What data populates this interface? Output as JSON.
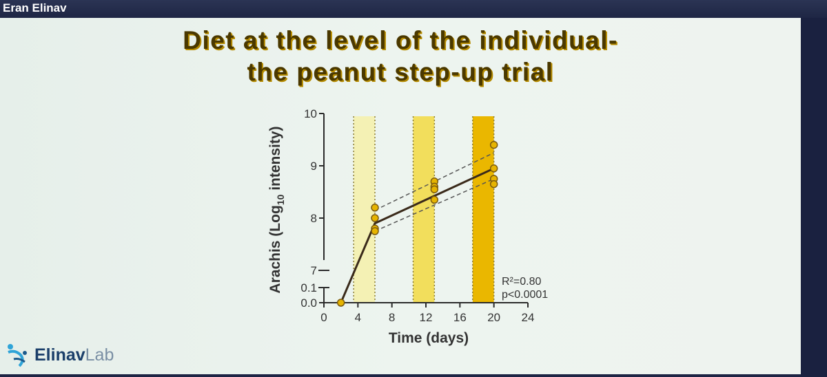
{
  "header": {
    "speaker": "Eran Elinav"
  },
  "slide": {
    "title_line1": "Diet at the level of the individual-",
    "title_line2": "the peanut step-up trial"
  },
  "logo": {
    "bold": "Elinav",
    "light": "Lab"
  },
  "colors": {
    "line": "#3a2a1a",
    "point_fill": "#e6b400",
    "point_stroke": "#7a5a10",
    "band1": "#f4f1b4",
    "band2": "#f2de5c",
    "band3": "#eab700"
  },
  "chart_data": {
    "type": "line",
    "xlabel": "Time (days)",
    "ylabel_main": "Arachis (Log",
    "ylabel_sub": "10",
    "ylabel_end": " intensity)",
    "x_ticks": [
      0,
      4,
      8,
      12,
      16,
      20,
      24
    ],
    "y_ticks": [
      {
        "value": 0.0,
        "label": "0.0"
      },
      {
        "value": 0.1,
        "label": "0.1"
      },
      {
        "value": 7,
        "label": "7"
      },
      {
        "value": 8,
        "label": "8"
      },
      {
        "value": 9,
        "label": "9"
      },
      {
        "value": 10,
        "label": "10"
      }
    ],
    "xlim": [
      0,
      24
    ],
    "axis_break": "between 0.1 and 7",
    "bands": [
      {
        "x0": 3.5,
        "x1": 6,
        "shade": "band1"
      },
      {
        "x0": 10.5,
        "x1": 13,
        "shade": "band2"
      },
      {
        "x0": 17.5,
        "x1": 20,
        "shade": "band3"
      }
    ],
    "mean_line": [
      {
        "x": 2,
        "y": 0.0
      },
      {
        "x": 6,
        "y": 7.9
      },
      {
        "x": 20,
        "y": 8.95
      }
    ],
    "ci_upper": [
      {
        "x": 6,
        "y": 8.15
      },
      {
        "x": 20,
        "y": 9.25
      }
    ],
    "ci_lower": [
      {
        "x": 6,
        "y": 7.75
      },
      {
        "x": 20,
        "y": 8.75
      }
    ],
    "points": [
      {
        "x": 2,
        "y": 0.0
      },
      {
        "x": 6,
        "y": 8.2
      },
      {
        "x": 6,
        "y": 8.0
      },
      {
        "x": 6,
        "y": 7.8
      },
      {
        "x": 6,
        "y": 7.75
      },
      {
        "x": 13,
        "y": 8.7
      },
      {
        "x": 13,
        "y": 8.6
      },
      {
        "x": 13,
        "y": 8.55
      },
      {
        "x": 13,
        "y": 8.35
      },
      {
        "x": 20,
        "y": 9.4
      },
      {
        "x": 20,
        "y": 8.95
      },
      {
        "x": 20,
        "y": 8.75
      },
      {
        "x": 20,
        "y": 8.65
      }
    ],
    "annotations": [
      "R²=0.80",
      "p<0.0001"
    ]
  }
}
